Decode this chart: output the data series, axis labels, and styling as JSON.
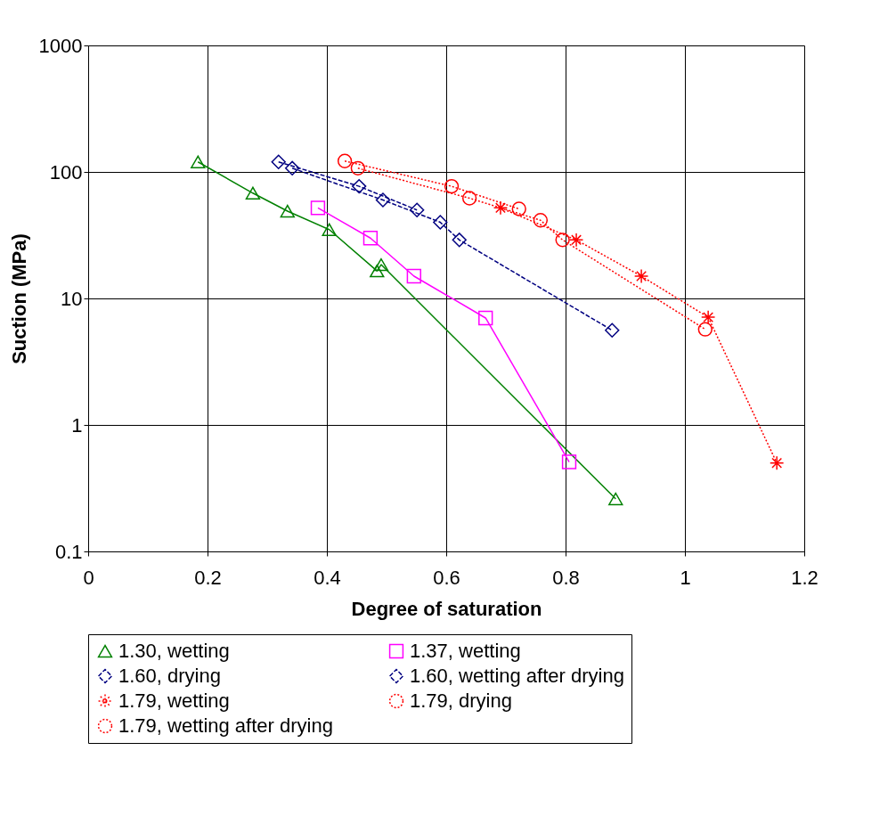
{
  "chart_data": {
    "type": "line",
    "xlabel": "Degree of saturation",
    "ylabel": "Suction (MPa)",
    "log": "y",
    "grid": true,
    "legend": "bottom",
    "xlim": [
      0,
      1.2
    ],
    "xticks": [
      0,
      0.2,
      0.4,
      0.6,
      0.8,
      1,
      1.2
    ],
    "ylim": [
      0.1,
      1000
    ],
    "yticks": [
      0.1,
      1,
      10,
      100,
      1000
    ],
    "series": [
      {
        "name": "1.30, wetting",
        "color": "#008000",
        "marker": "triangle",
        "line_style": "solid",
        "x": [
          0.184,
          0.276,
          0.334,
          0.404,
          0.484,
          0.491,
          0.884
        ],
        "values": [
          120,
          68,
          49,
          35,
          16.5,
          18.5,
          0.26
        ]
      },
      {
        "name": "1.37, wetting",
        "color": "#ff00ff",
        "marker": "square",
        "line_style": "solid",
        "x": [
          0.385,
          0.473,
          0.546,
          0.666,
          0.806
        ],
        "values": [
          52,
          30,
          15,
          7,
          0.51
        ]
      },
      {
        "name": "1.60, drying",
        "color": "#000080",
        "marker": "diamond",
        "line_style": "dashed",
        "x": [
          0.319,
          0.454,
          0.551
        ],
        "values": [
          120,
          77,
          50
        ]
      },
      {
        "name": "1.60, wetting after drying",
        "color": "#000080",
        "marker": "diamond",
        "line_style": "dashed",
        "x": [
          0.342,
          0.494,
          0.59,
          0.622,
          0.878
        ],
        "values": [
          107,
          60,
          40,
          29,
          5.6
        ]
      },
      {
        "name": "1.79, wetting",
        "color": "#ff0000",
        "marker": "cross",
        "line_style": "dotted",
        "x": [
          0.691,
          0.818,
          0.927,
          1.039,
          1.154
        ],
        "values": [
          52,
          29,
          15,
          7.1,
          0.5
        ]
      },
      {
        "name": "1.79, drying",
        "color": "#ff0000",
        "marker": "circle",
        "line_style": "dotted",
        "x": [
          0.43,
          0.609,
          0.722
        ],
        "values": [
          122,
          77,
          51
        ]
      },
      {
        "name": "1.79, wetting after drying",
        "color": "#ff0000",
        "marker": "circle",
        "line_style": "dotted",
        "x": [
          0.452,
          0.639,
          0.758,
          0.795,
          1.034
        ],
        "values": [
          107,
          62,
          41.5,
          29,
          5.7
        ]
      }
    ]
  }
}
